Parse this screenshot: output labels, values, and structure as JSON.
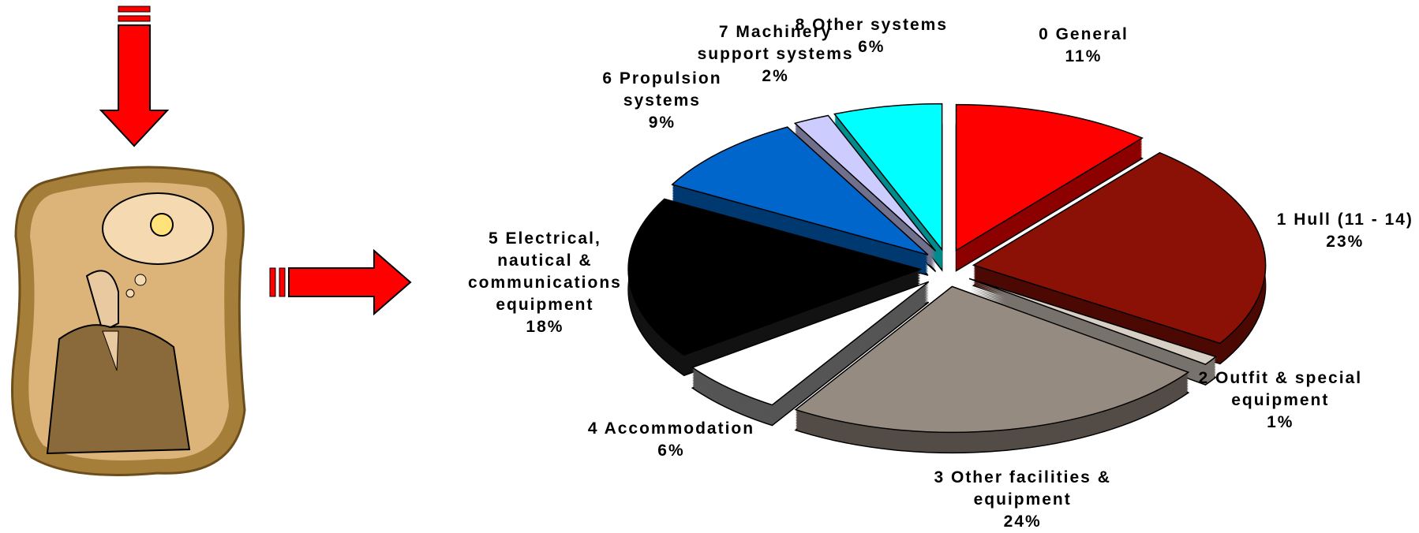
{
  "chart_data": {
    "type": "pie",
    "categories": [
      "0 General",
      "1 Hull (11 - 14)",
      "2 Outfit & special equipment",
      "3 Other facilities & equipment",
      "4 Accommodation",
      "5 Electrical, nautical & communications equipment",
      "6 Propulsion systems",
      "7 Machinery support systems",
      "8 Other systems"
    ],
    "values": [
      11,
      23,
      1,
      24,
      6,
      18,
      9,
      2,
      6
    ],
    "value_labels": [
      "11%",
      "23%",
      "1%",
      "24%",
      "6%",
      "18%",
      "9%",
      "2%",
      "6%"
    ],
    "colors": [
      "#ff0000",
      "#8b1006",
      "#d8cfc4",
      "#968b80",
      "#ffffff",
      "#000000",
      "#0066cc",
      "#ccccff",
      "#00ffff"
    ]
  }
}
